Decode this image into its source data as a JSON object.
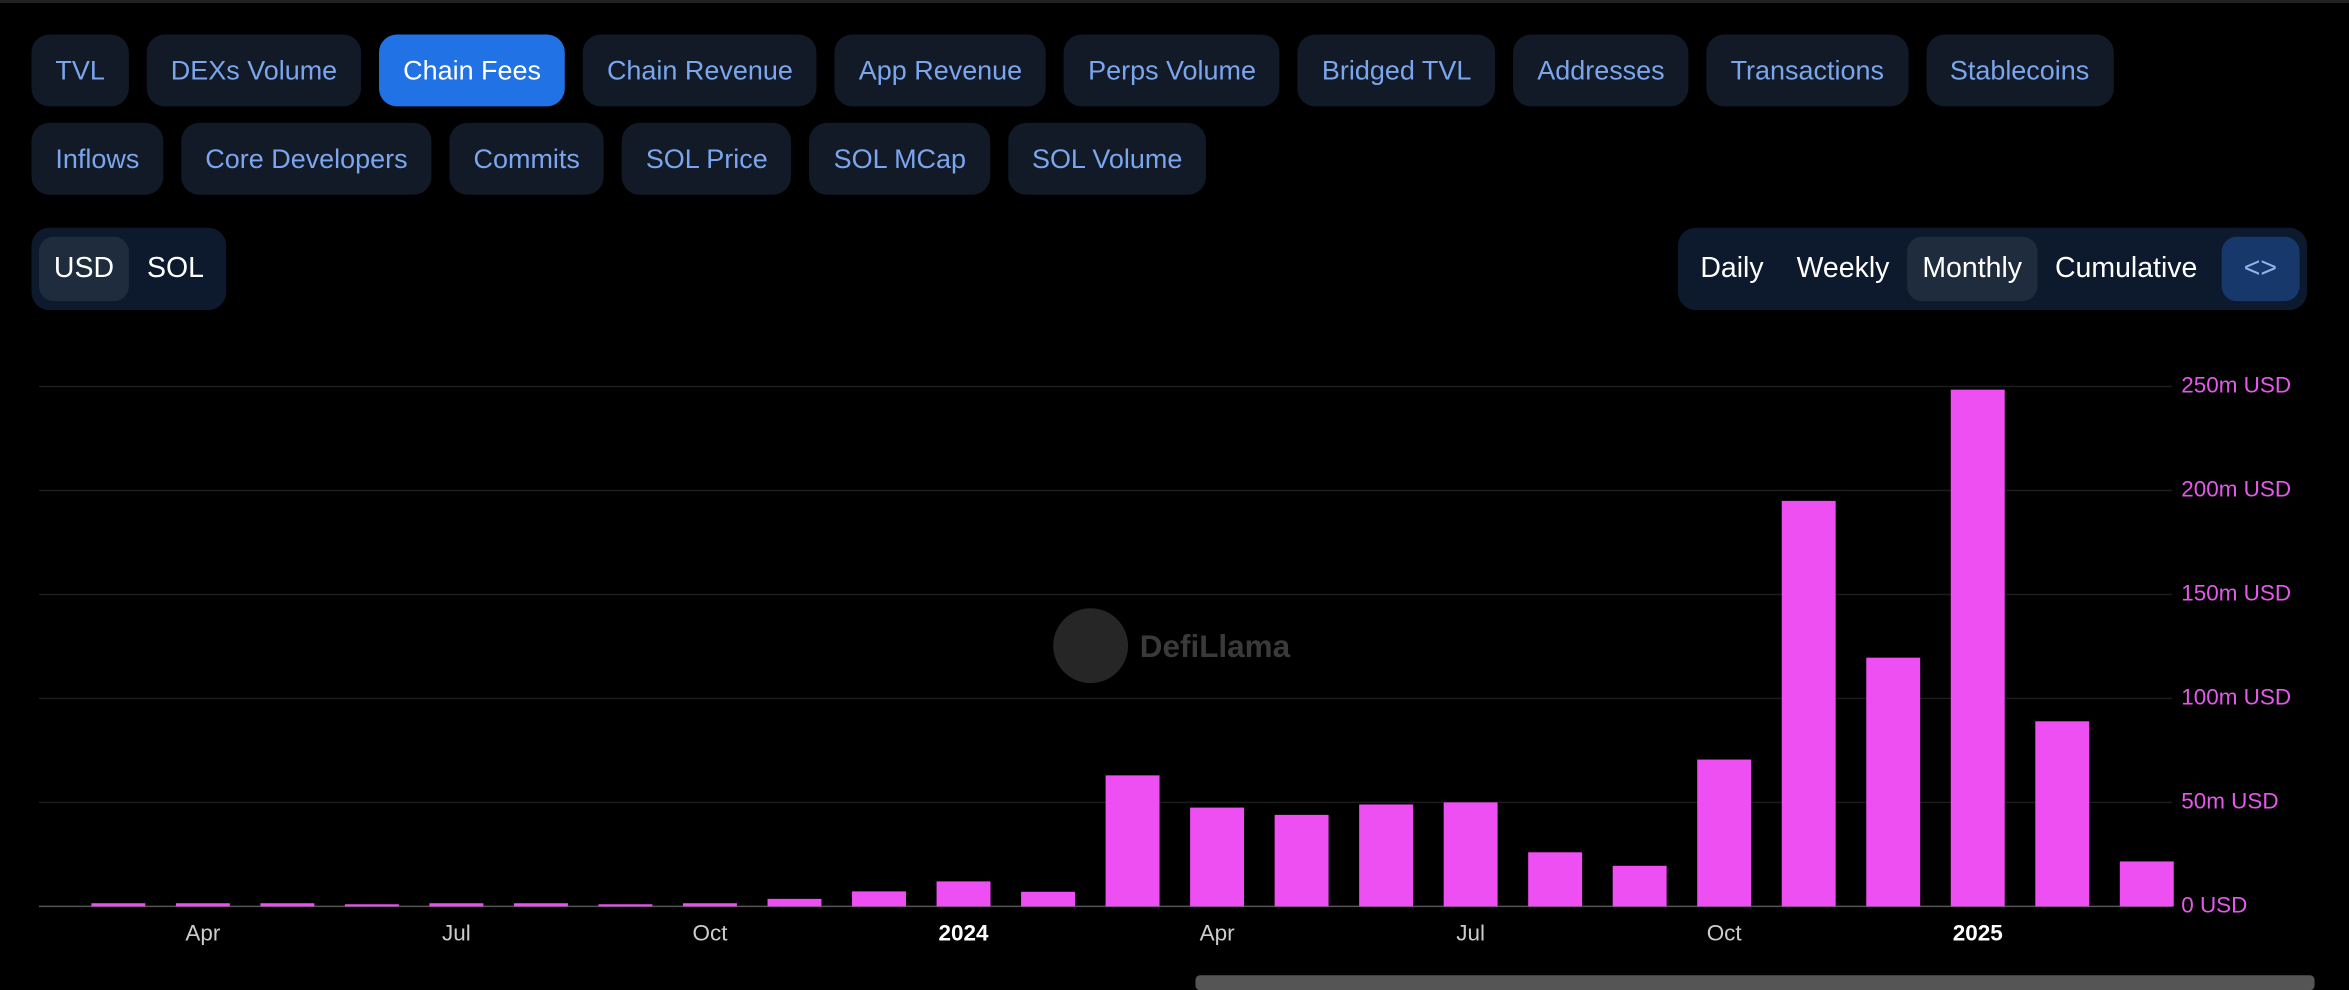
{
  "tabs": [
    "TVL",
    "DEXs Volume",
    "Chain Fees",
    "Chain Revenue",
    "App Revenue",
    "Perps Volume",
    "Bridged TVL",
    "Addresses",
    "Transactions",
    "Stablecoins",
    "Inflows",
    "Core Developers",
    "Commits",
    "SOL Price",
    "SOL MCap",
    "SOL Volume"
  ],
  "active_tab": "Chain Fees",
  "denominations": [
    "USD",
    "SOL"
  ],
  "active_denomination": "USD",
  "periods": [
    "Daily",
    "Weekly",
    "Monthly",
    "Cumulative"
  ],
  "active_period": "Monthly",
  "embed_button": "<>",
  "chart_data": {
    "type": "bar",
    "watermark": "DefiLlama",
    "categories": [
      null,
      "Apr",
      null,
      null,
      "Jul",
      null,
      null,
      "Oct",
      null,
      null,
      "2024",
      null,
      null,
      "Apr",
      null,
      null,
      "Jul",
      null,
      null,
      "Oct",
      null,
      null,
      "2025",
      null,
      null
    ],
    "values": [
      1.5,
      1.5,
      1.5,
      1,
      1.5,
      1.5,
      1,
      1.5,
      3.6,
      7.2,
      12,
      7,
      63,
      47.5,
      44,
      49,
      50,
      26,
      19.5,
      70.6,
      195,
      119.6,
      248.5,
      89,
      21.6
    ],
    "color": "#ee4ff2",
    "ylim": [
      0,
      250
    ],
    "yticks": [
      {
        "value": 0,
        "label": "0 USD"
      },
      {
        "value": 50,
        "label": "50m USD"
      },
      {
        "value": 100,
        "label": "100m USD"
      },
      {
        "value": 150,
        "label": "150m USD"
      },
      {
        "value": 200,
        "label": "200m USD"
      },
      {
        "value": 250,
        "label": "250m USD"
      }
    ],
    "grid": true
  }
}
